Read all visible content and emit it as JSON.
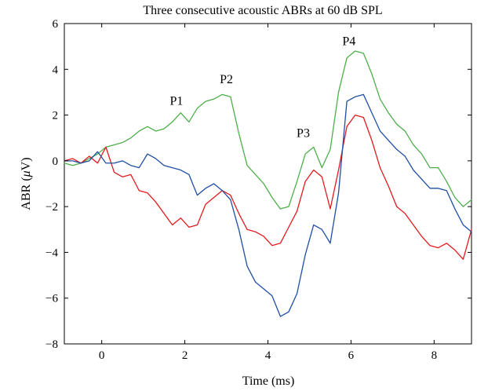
{
  "chart_data": {
    "type": "line",
    "title": "Three consecutive acoustic ABRs at 60 dB SPL",
    "xlabel": "Time (ms)",
    "ylabel_prefix": "ABR (",
    "ylabel_mu": "μ",
    "ylabel_suffix": "V)",
    "xlim": [
      -0.9,
      8.9
    ],
    "ylim": [
      -8,
      6
    ],
    "xticks": [
      0,
      2,
      4,
      6,
      8
    ],
    "xtick_labels": [
      "0",
      "2",
      "4",
      "6",
      "8"
    ],
    "yticks": [
      -8,
      -6,
      -4,
      -2,
      0,
      2,
      4,
      6
    ],
    "ytick_labels": [
      "−8",
      "−6",
      "−4",
      "−2",
      "0",
      "2",
      "4",
      "6"
    ],
    "grid": false,
    "legend": "none",
    "annotations": [
      {
        "text": "P1",
        "x": 1.8,
        "y": 2.45
      },
      {
        "text": "P2",
        "x": 3.0,
        "y": 3.4
      },
      {
        "text": "P3",
        "x": 4.85,
        "y": 1.05
      },
      {
        "text": "P4",
        "x": 5.95,
        "y": 5.05
      }
    ],
    "series": [
      {
        "color": "#4daf4a",
        "x": [
          -0.9,
          -0.7,
          -0.5,
          -0.3,
          -0.1,
          0.1,
          0.3,
          0.5,
          0.7,
          0.9,
          1.1,
          1.3,
          1.5,
          1.7,
          1.9,
          2.1,
          2.3,
          2.5,
          2.7,
          2.9,
          3.1,
          3.3,
          3.5,
          3.7,
          3.9,
          4.1,
          4.3,
          4.5,
          4.7,
          4.9,
          5.1,
          5.3,
          5.5,
          5.7,
          5.9,
          6.1,
          6.3,
          6.5,
          6.7,
          6.9,
          7.1,
          7.3,
          7.5,
          7.7,
          7.9,
          8.1,
          8.3,
          8.5,
          8.7,
          8.9
        ],
        "y": [
          -0.1,
          -0.2,
          -0.1,
          0.1,
          0.3,
          0.6,
          0.7,
          0.8,
          1.0,
          1.3,
          1.5,
          1.3,
          1.4,
          1.7,
          2.1,
          1.7,
          2.3,
          2.6,
          2.7,
          2.9,
          2.8,
          1.2,
          -0.2,
          -0.6,
          -1.0,
          -1.6,
          -2.1,
          -2.0,
          -0.9,
          0.3,
          0.6,
          -0.3,
          0.5,
          3.0,
          4.5,
          4.8,
          4.7,
          3.8,
          2.7,
          2.1,
          1.6,
          1.3,
          0.7,
          0.3,
          -0.3,
          -0.3,
          -0.9,
          -1.6,
          -2.0,
          -1.7
        ]
      },
      {
        "color": "#e41a1c",
        "x": [
          -0.9,
          -0.7,
          -0.5,
          -0.3,
          -0.1,
          0.1,
          0.3,
          0.5,
          0.7,
          0.9,
          1.1,
          1.3,
          1.5,
          1.7,
          1.9,
          2.1,
          2.3,
          2.5,
          2.7,
          2.9,
          3.1,
          3.3,
          3.5,
          3.7,
          3.9,
          4.1,
          4.3,
          4.5,
          4.7,
          4.9,
          5.1,
          5.3,
          5.5,
          5.7,
          5.9,
          6.1,
          6.3,
          6.5,
          6.7,
          6.9,
          7.1,
          7.3,
          7.5,
          7.7,
          7.9,
          8.1,
          8.3,
          8.5,
          8.7,
          8.9
        ],
        "y": [
          0.0,
          0.1,
          -0.1,
          0.2,
          -0.1,
          0.6,
          -0.5,
          -0.7,
          -0.6,
          -1.3,
          -1.4,
          -1.8,
          -2.3,
          -2.8,
          -2.5,
          -2.9,
          -2.8,
          -1.9,
          -1.6,
          -1.3,
          -1.5,
          -2.3,
          -3.0,
          -3.1,
          -3.3,
          -3.7,
          -3.6,
          -2.9,
          -2.2,
          -0.9,
          -0.4,
          -0.7,
          -2.1,
          -0.4,
          1.5,
          2.0,
          1.9,
          0.9,
          -0.3,
          -1.1,
          -2.0,
          -2.3,
          -2.8,
          -3.3,
          -3.7,
          -3.8,
          -3.6,
          -3.9,
          -4.3,
          -3.0
        ]
      },
      {
        "color": "#1f4ea3",
        "x": [
          -0.9,
          -0.7,
          -0.5,
          -0.3,
          -0.1,
          0.1,
          0.3,
          0.5,
          0.7,
          0.9,
          1.1,
          1.3,
          1.5,
          1.7,
          1.9,
          2.1,
          2.3,
          2.5,
          2.7,
          2.9,
          3.1,
          3.3,
          3.5,
          3.7,
          3.9,
          4.1,
          4.3,
          4.5,
          4.7,
          4.9,
          5.1,
          5.3,
          5.5,
          5.7,
          5.9,
          6.1,
          6.3,
          6.5,
          6.7,
          6.9,
          7.1,
          7.3,
          7.5,
          7.7,
          7.9,
          8.1,
          8.3,
          8.5,
          8.7,
          8.9
        ],
        "y": [
          0.0,
          0.0,
          -0.1,
          0.0,
          0.4,
          -0.1,
          -0.1,
          0.0,
          -0.2,
          -0.3,
          0.3,
          0.1,
          -0.2,
          -0.3,
          -0.4,
          -0.6,
          -1.5,
          -1.2,
          -1.0,
          -1.3,
          -1.7,
          -3.0,
          -4.6,
          -5.3,
          -5.6,
          -5.9,
          -6.8,
          -6.6,
          -5.8,
          -4.1,
          -2.8,
          -3.0,
          -3.6,
          -1.4,
          2.6,
          2.8,
          2.9,
          2.1,
          1.3,
          0.9,
          0.5,
          0.2,
          -0.4,
          -0.8,
          -1.2,
          -1.2,
          -1.3,
          -2.1,
          -2.8,
          -3.1
        ]
      }
    ]
  }
}
